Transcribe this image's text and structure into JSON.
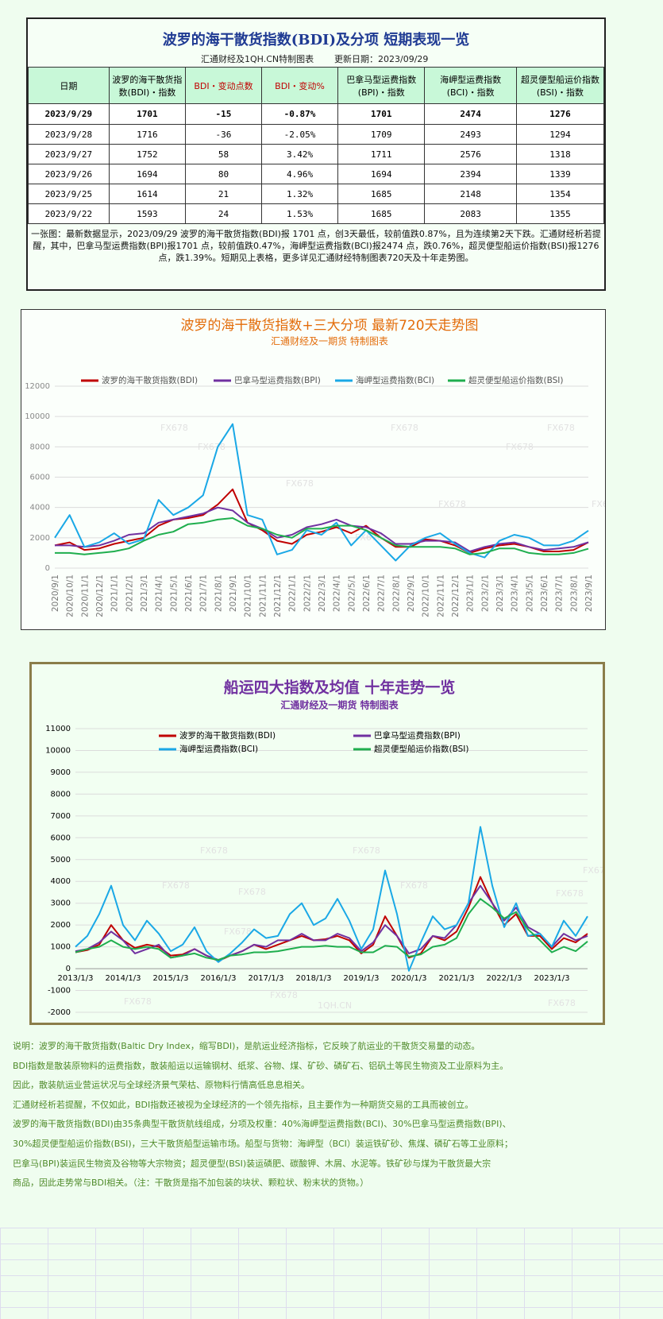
{
  "header": {
    "title": "波罗的海干散货指数(BDI)及分项  短期表现一览",
    "subtitle": "汇通财经及1QH.CN特制图表",
    "updated": "更新日期：2023/09/29"
  },
  "table": {
    "columns": [
      "日期",
      "波罗的海干散货指数(BDI)・指数",
      "BDI・变动点数",
      "BDI・变动%",
      "巴拿马型运费指数(BPI)・指数",
      "海岬型运费指数(BCI)・指数",
      "超灵便型船运价指数(BSI)・指数"
    ],
    "rows": [
      [
        "2023/9/29",
        "1701",
        "-15",
        "-0.87%",
        "1701",
        "2474",
        "1276"
      ],
      [
        "2023/9/28",
        "1716",
        "-36",
        "-2.05%",
        "1709",
        "2493",
        "1294"
      ],
      [
        "2023/9/27",
        "1752",
        "58",
        "3.42%",
        "1711",
        "2576",
        "1318"
      ],
      [
        "2023/9/26",
        "1694",
        "80",
        "4.96%",
        "1694",
        "2394",
        "1339"
      ],
      [
        "2023/9/25",
        "1614",
        "21",
        "1.32%",
        "1685",
        "2148",
        "1354"
      ],
      [
        "2023/9/22",
        "1593",
        "24",
        "1.53%",
        "1685",
        "2083",
        "1355"
      ]
    ]
  },
  "summary": "一张图：最新数据显示，2023/09/29 波罗的海干散货指数(BDI)报 1701 点，创3天最低，较前值跌0.87%，且为连续第2天下跌。汇通财经析若提醒，其中，巴拿马型运费指数(BPI)报1701 点，较前值跌0.47%，海岬型运费指数(BCI)报2474 点，跌0.76%，超灵便型船运价指数(BSI)报1276 点，跌1.39%。短期见上表格，更多详见汇通财经特制图表720天及十年走势图。",
  "chart_data": [
    {
      "type": "line",
      "title": "波罗的海干散货指数+三大分项  最新720天走势图",
      "subtitle": "汇通财经及一期货  特制图表",
      "title_color": "#e36c0a",
      "categories": [
        "2020/9/1",
        "2020/10/1",
        "2020/11/1",
        "2020/12/1",
        "2021/1/1",
        "2021/2/1",
        "2021/3/1",
        "2021/4/1",
        "2021/5/1",
        "2021/6/1",
        "2021/7/1",
        "2021/8/1",
        "2021/9/1",
        "2021/10/1",
        "2021/11/1",
        "2021/12/1",
        "2022/1/1",
        "2022/2/1",
        "2022/3/1",
        "2022/4/1",
        "2022/5/1",
        "2022/6/1",
        "2022/7/1",
        "2022/8/1",
        "2022/9/1",
        "2022/10/1",
        "2022/11/1",
        "2022/12/1",
        "2023/1/1",
        "2023/2/1",
        "2023/3/1",
        "2023/4/1",
        "2023/5/1",
        "2023/6/1",
        "2023/7/1",
        "2023/8/1",
        "2023/9/1"
      ],
      "series": [
        {
          "name": "波罗的海干散货指数(BDI)",
          "color": "#c00000",
          "values": [
            1500,
            1700,
            1200,
            1300,
            1600,
            1800,
            2000,
            2800,
            3200,
            3300,
            3500,
            4200,
            5200,
            3000,
            2500,
            1800,
            1600,
            2200,
            2400,
            2700,
            2300,
            2800,
            2000,
            1400,
            1400,
            1900,
            1800,
            1500,
            1000,
            1300,
            1500,
            1600,
            1400,
            1100,
            1100,
            1200,
            1701
          ]
        },
        {
          "name": "巴拿马型运费指数(BPI)",
          "color": "#7030a0",
          "values": [
            1500,
            1500,
            1400,
            1500,
            1800,
            2200,
            2300,
            3000,
            3200,
            3400,
            3600,
            4000,
            3800,
            3000,
            2600,
            2000,
            2200,
            2700,
            2900,
            3200,
            2800,
            2700,
            2300,
            1600,
            1600,
            1800,
            1800,
            1700,
            1100,
            1400,
            1600,
            1700,
            1400,
            1200,
            1300,
            1400,
            1701
          ]
        },
        {
          "name": "海岬型运费指数(BCI)",
          "color": "#1aa8e6",
          "values": [
            2000,
            3500,
            1400,
            1700,
            2300,
            1600,
            1900,
            4500,
            3500,
            4000,
            4800,
            8000,
            9500,
            3500,
            3200,
            900,
            1200,
            2500,
            2200,
            3000,
            1500,
            2500,
            1500,
            500,
            1500,
            2000,
            2300,
            1600,
            1000,
            700,
            1800,
            2200,
            2000,
            1500,
            1500,
            1800,
            2474
          ]
        },
        {
          "name": "超灵便型船运价指数(BSI)",
          "color": "#1fae4e",
          "values": [
            1000,
            1000,
            900,
            1000,
            1100,
            1300,
            1800,
            2200,
            2400,
            2900,
            3000,
            3200,
            3300,
            2800,
            2600,
            2200,
            2000,
            2600,
            2600,
            2800,
            2800,
            2500,
            2000,
            1500,
            1400,
            1400,
            1400,
            1300,
            900,
            1000,
            1300,
            1300,
            1000,
            900,
            900,
            1000,
            1276
          ]
        }
      ],
      "ylim": [
        0,
        12000
      ],
      "yticks": [
        0,
        2000,
        4000,
        6000,
        8000,
        10000,
        12000
      ],
      "grid": true,
      "watermarks": [
        "FX678",
        "FX678",
        "FX678",
        "FX678",
        "FX678",
        "FX678",
        "FX678",
        "FX678",
        "FX678"
      ]
    },
    {
      "type": "line",
      "title": "船运四大指数及均值 十年走势一览",
      "subtitle": "汇通财经及一期货 特制图表",
      "title_color": "#7030a0",
      "categories": [
        "2013/1/3",
        null,
        null,
        null,
        "2014/1/3",
        null,
        null,
        null,
        "2015/1/3",
        null,
        null,
        null,
        "2016/1/3",
        null,
        null,
        null,
        "2017/1/3",
        null,
        null,
        null,
        "2018/1/3",
        null,
        null,
        null,
        "2019/1/3",
        null,
        null,
        null,
        "2020/1/3",
        null,
        null,
        null,
        "2021/1/3",
        null,
        null,
        null,
        "2022/1/3",
        null,
        null,
        null,
        "2023/1/3",
        null,
        null,
        null
      ],
      "series": [
        {
          "name": "波罗的海干散货指数(BDI)",
          "color": "#c00000",
          "values": [
            750,
            850,
            1100,
            2000,
            1300,
            950,
            1100,
            1000,
            600,
            650,
            900,
            600,
            350,
            600,
            800,
            1100,
            900,
            1100,
            1300,
            1500,
            1300,
            1350,
            1500,
            1300,
            700,
            1100,
            2400,
            1500,
            500,
            700,
            1500,
            1300,
            1700,
            2800,
            4200,
            3000,
            2000,
            2500,
            1500,
            1500,
            900,
            1400,
            1200,
            1600
          ]
        },
        {
          "name": "巴拿马型运费指数(BPI)",
          "color": "#7030a0",
          "values": [
            800,
            900,
            1200,
            1700,
            1300,
            700,
            900,
            1100,
            500,
            600,
            900,
            600,
            400,
            600,
            800,
            1100,
            1000,
            1300,
            1300,
            1600,
            1300,
            1300,
            1600,
            1400,
            800,
            1200,
            2000,
            1500,
            700,
            900,
            1500,
            1400,
            2000,
            3000,
            3800,
            3000,
            2200,
            2800,
            1900,
            1600,
            1000,
            1600,
            1300,
            1500
          ]
        },
        {
          "name": "海岬型运费指数(BCI)",
          "color": "#1aa8e6",
          "values": [
            1000,
            1500,
            2500,
            3800,
            2000,
            1300,
            2200,
            1600,
            800,
            1100,
            1900,
            800,
            300,
            700,
            1200,
            1800,
            1400,
            1500,
            2500,
            3000,
            2000,
            2300,
            3200,
            2200,
            900,
            1800,
            4500,
            2500,
            -100,
            1200,
            2400,
            1800,
            2000,
            3000,
            6500,
            3800,
            1900,
            3000,
            1500,
            1600,
            1000,
            2200,
            1500,
            2400
          ]
        },
        {
          "name": "超灵便型船运价指数(BSI)",
          "color": "#1fae4e",
          "values": [
            750,
            900,
            1000,
            1300,
            1000,
            900,
            1000,
            900,
            500,
            600,
            700,
            500,
            400,
            600,
            650,
            750,
            750,
            800,
            900,
            1000,
            1000,
            1050,
            1000,
            1000,
            750,
            750,
            1050,
            1000,
            550,
            650,
            1000,
            1100,
            1400,
            2500,
            3200,
            2800,
            2300,
            2600,
            1800,
            1300,
            750,
            1000,
            800,
            1250
          ]
        }
      ],
      "ylim": [
        -2000,
        11000
      ],
      "yticks": [
        -2000,
        -1000,
        0,
        1000,
        2000,
        3000,
        4000,
        5000,
        6000,
        7000,
        8000,
        9000,
        10000,
        11000
      ],
      "grid": true,
      "watermarks": [
        "FX678",
        "FX678",
        "FX678",
        "FX678",
        "FX678",
        "FX678",
        "FX678",
        "FX678",
        "FX678",
        "FX678",
        "FX678",
        "1QH.CN"
      ]
    }
  ],
  "notes": [
    "说明：波罗的海干散货指数(Baltic Dry Index，缩写BDI)，是航运业经济指标，它反映了航运业的干散货交易量的动态。",
    "BDI指数是散装原物料的运费指数，散装船运以运输钢材、纸浆、谷物、煤、矿砂、磷矿石、铝矾土等民生物资及工业原料为主。",
    "因此，散装航运业营运状况与全球经济景气荣枯、原物料行情高低息息相关。",
    "汇通财经析若提醒，不仅如此，BDI指数还被视为全球经济的一个领先指标，且主要作为一种期货交易的工具而被创立。",
    "波罗的海干散货指数(BDI)由35条典型干散货航线组成，分项及权重：40%海岬型运费指数(BCI)、30%巴拿马型运费指数(BPI)、",
    "30%超灵便型船运价指数(BSI)，三大干散货船型运输市场。船型与货物：海岬型（BCI）装运铁矿砂、焦煤、磷矿石等工业原料；",
    "巴拿马(BPI)装运民生物资及谷物等大宗物资；超灵便型(BSI)装运磷肥、碳酸钾、木屑、水泥等。铁矿砂与煤为干散货最大宗",
    "商品，因此走势常与BDI相关。（注：干散货是指不加包装的块状、颗粒状、粉末状的货物。）"
  ]
}
